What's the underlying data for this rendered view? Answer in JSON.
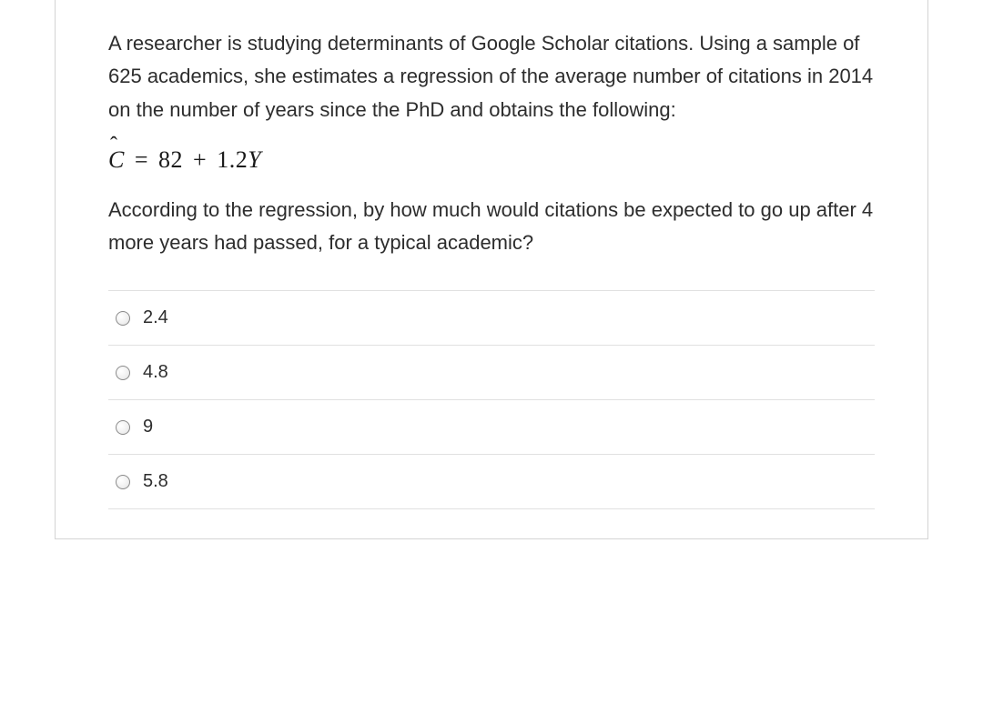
{
  "question": {
    "paragraph1": "A researcher is studying determinants of Google Scholar citations. Using a sample of 625 academics, she estimates a regression of the average number of citations in 2014 on the number of years since the PhD and obtains the following:",
    "equation": {
      "lhs_symbol": "C",
      "intercept": "82",
      "slope": "1.2",
      "var": "Y"
    },
    "paragraph2": "According to the regression, by how much would citations be expected to go up after 4 more years had passed, for a typical academic?",
    "options": [
      {
        "label": "2.4"
      },
      {
        "label": "4.8"
      },
      {
        "label": "9"
      },
      {
        "label": "5.8"
      }
    ]
  },
  "style": {
    "text_color": "#2d2d2d",
    "border_color": "#d4d4d4",
    "divider_color": "#e0e0e0",
    "background_color": "#ffffff",
    "radio_border_color": "#8a8a8a",
    "body_fontsize": 22,
    "option_fontsize": 20,
    "equation_fontsize": 26
  }
}
